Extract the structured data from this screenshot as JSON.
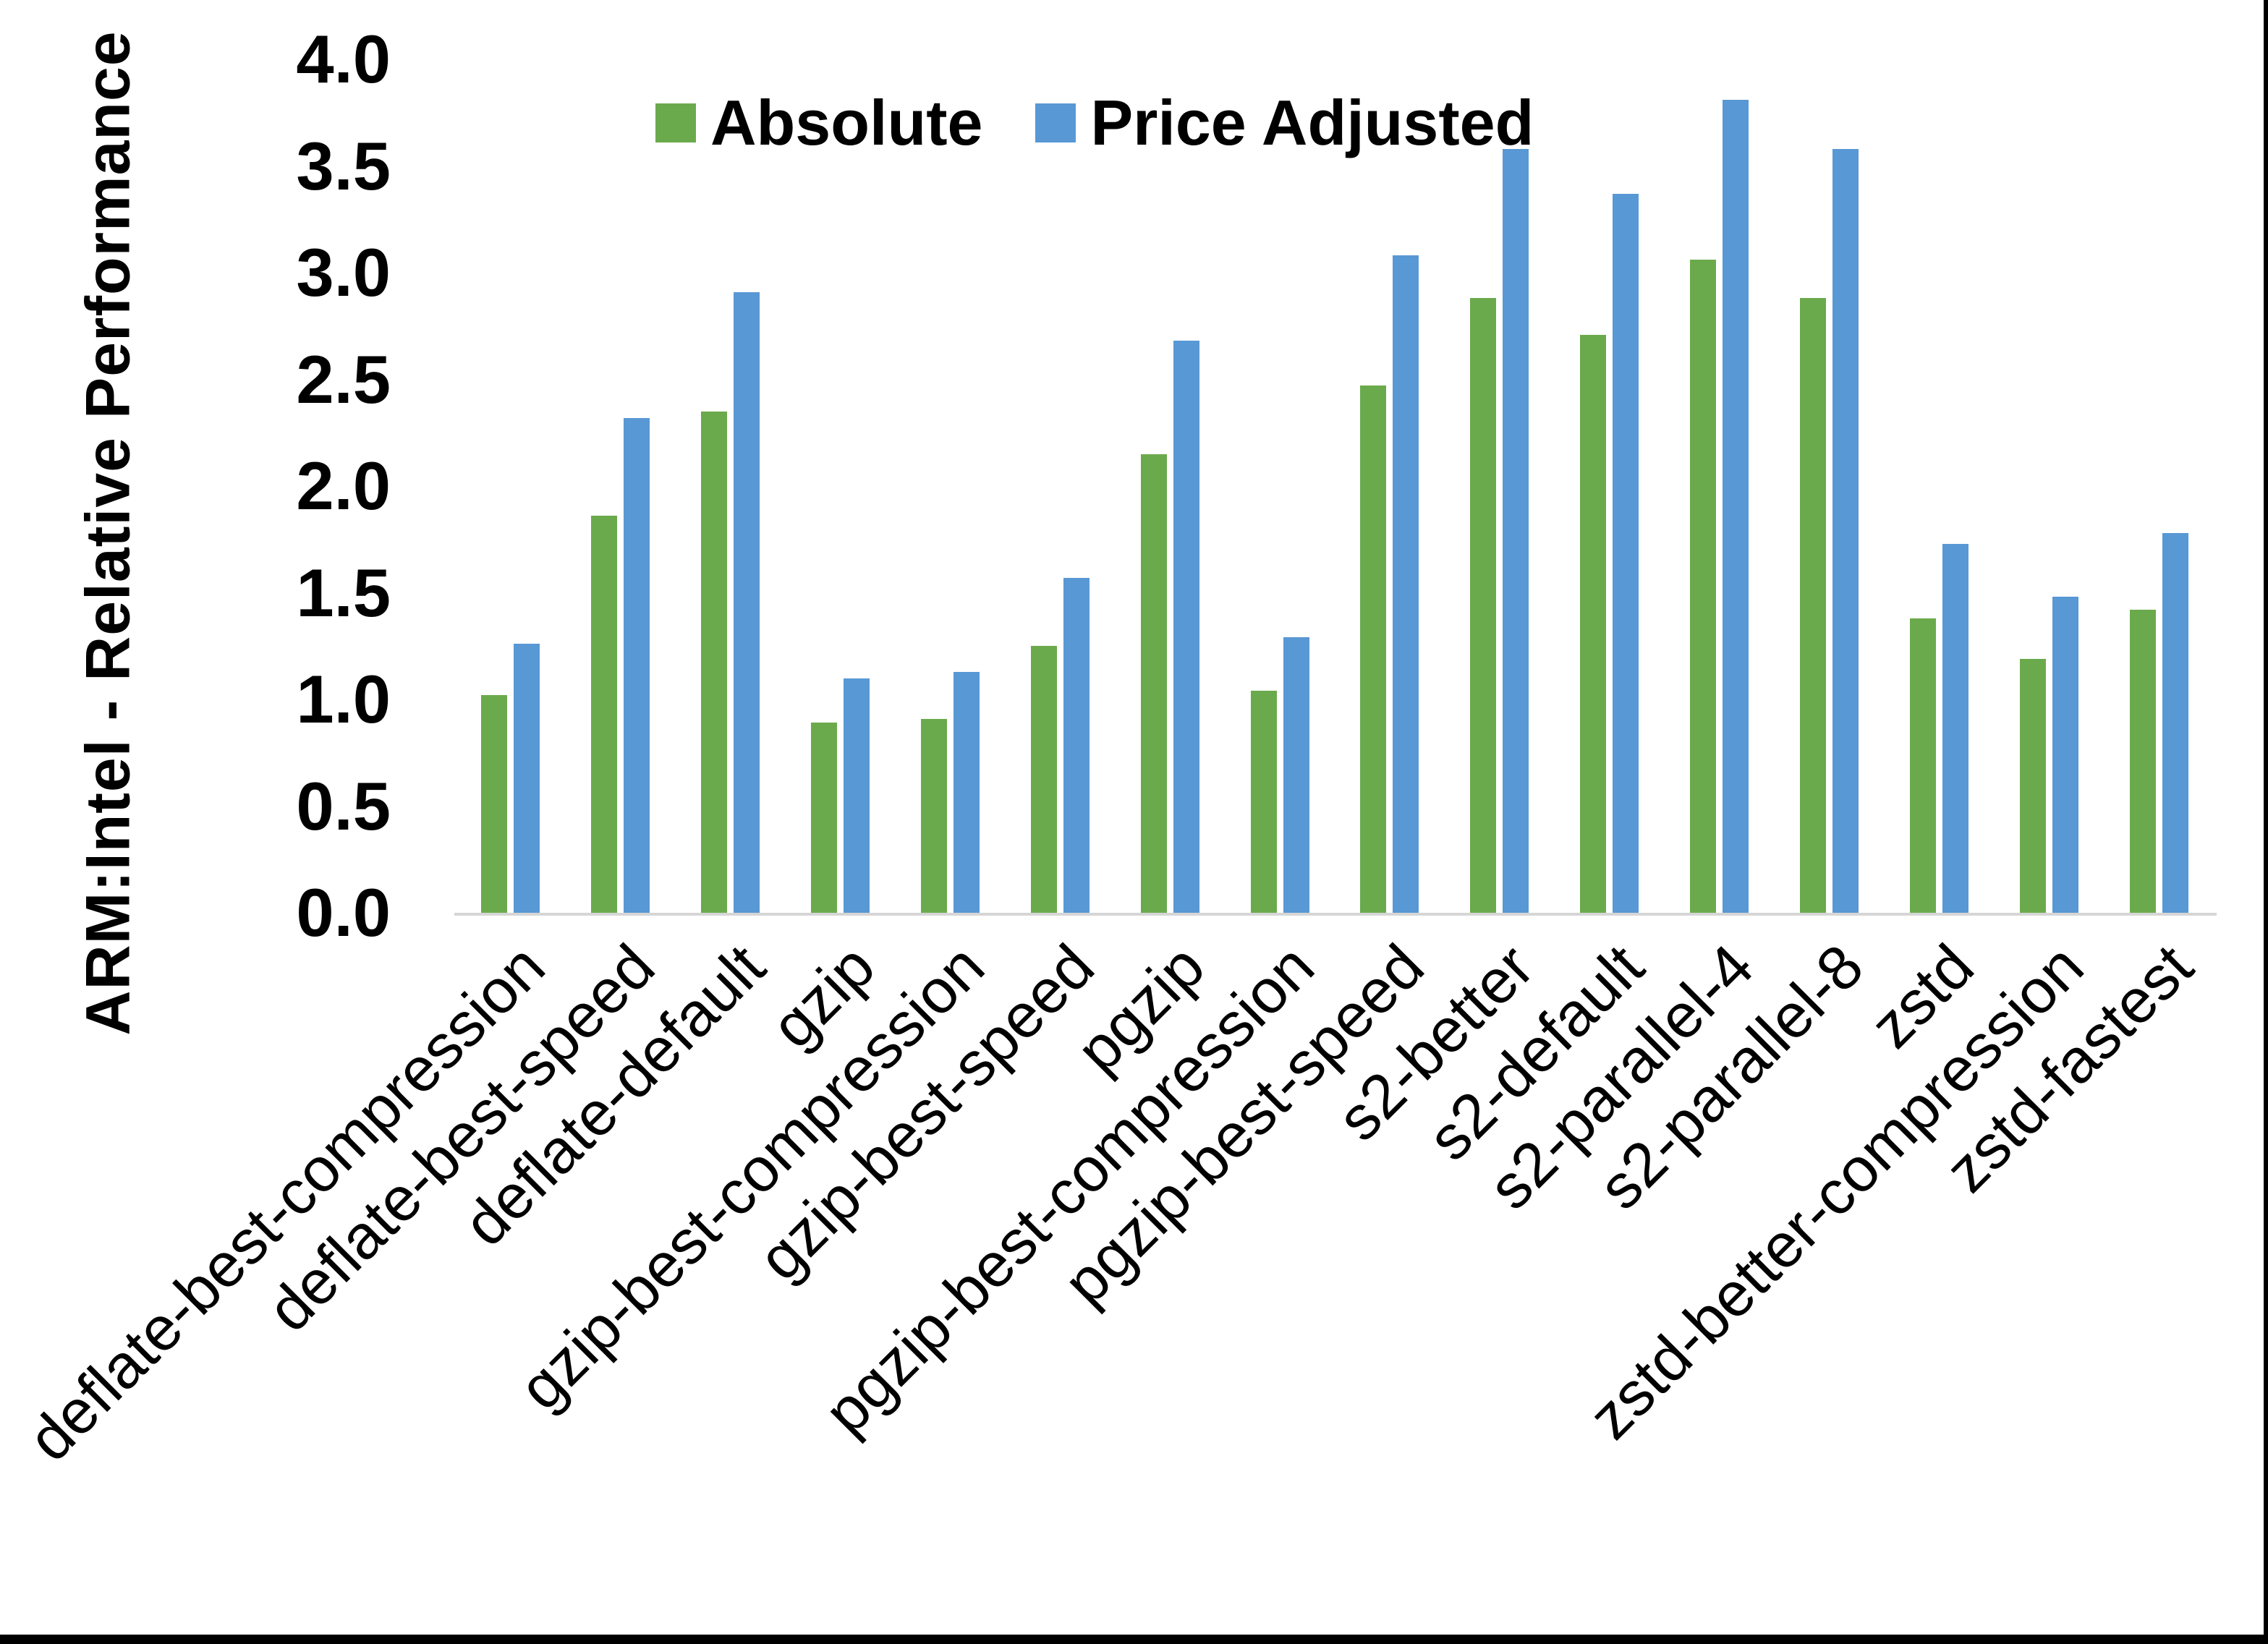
{
  "chart_data": {
    "type": "bar",
    "title": "",
    "ylabel": "ARM:Intel - Relative Performance",
    "xlabel": "",
    "ylim": [
      0,
      4.0
    ],
    "ytick_step": 0.5,
    "yticks": [
      "0.0",
      "0.5",
      "1.0",
      "1.5",
      "2.0",
      "2.5",
      "3.0",
      "3.5",
      "4.0"
    ],
    "grid": false,
    "legend_position": "top",
    "categories": [
      "deflate-best-compression",
      "deflate-best-speed",
      "deflate-default",
      "gzip",
      "gzip-best-compression",
      "gzip-best-speed",
      "pgzip",
      "pgzip-best-compression",
      "pgzip-best-speed",
      "s2-better",
      "s2-default",
      "s2-parallel-4",
      "s2-parallel-8",
      "zstd",
      "zstd-better-compression",
      "zstd-fastest"
    ],
    "series": [
      {
        "name": "Absolute",
        "color": "#6BAA4C",
        "values": [
          1.02,
          1.86,
          2.35,
          0.89,
          0.91,
          1.25,
          2.15,
          1.04,
          2.47,
          2.88,
          2.71,
          3.06,
          2.88,
          1.38,
          1.19,
          1.42
        ]
      },
      {
        "name": "Price Adjusted",
        "color": "#5898D4",
        "values": [
          1.26,
          2.32,
          2.91,
          1.1,
          1.13,
          1.57,
          2.68,
          1.29,
          3.08,
          3.58,
          3.37,
          3.81,
          3.58,
          1.73,
          1.48,
          1.78
        ]
      }
    ]
  },
  "colors": {
    "background": "#ffffff",
    "text": "#000000",
    "axis_line": "#d6d6d6",
    "frame_border": "#000000"
  }
}
